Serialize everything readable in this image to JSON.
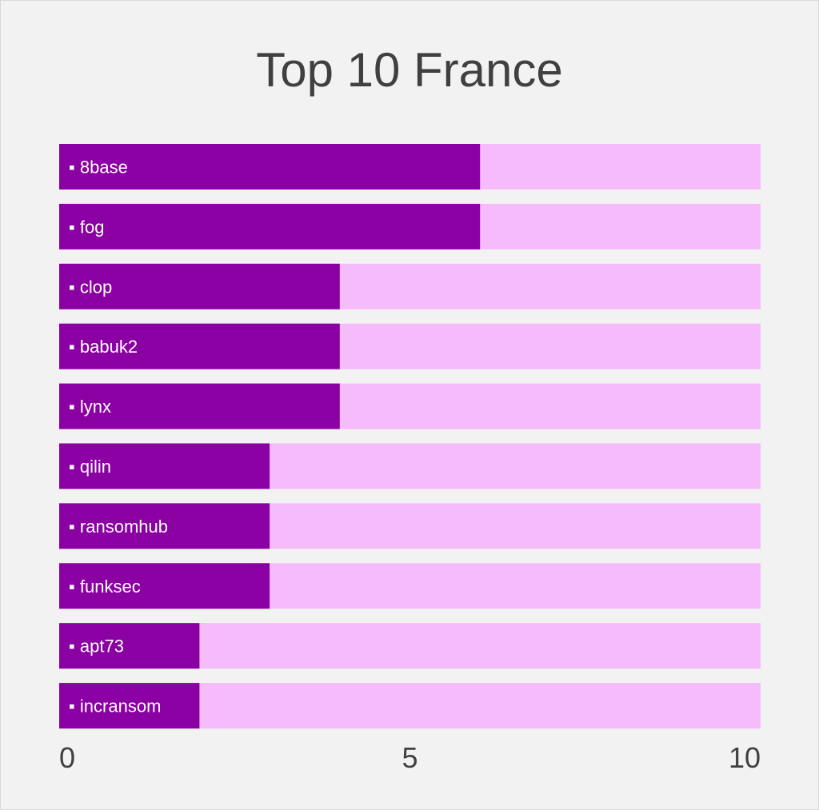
{
  "chart_data": {
    "type": "bar",
    "orientation": "horizontal",
    "title": "Top 10 France",
    "categories": [
      "8base",
      "fog",
      "clop",
      "babuk2",
      "lynx",
      "qilin",
      "ransomhub",
      "funksec",
      "apt73",
      "incransom"
    ],
    "values": [
      6,
      6,
      4,
      4,
      4,
      3,
      3,
      3,
      2,
      2
    ],
    "xlim": [
      0,
      10
    ],
    "x_ticks": [
      "0",
      "5",
      "10"
    ],
    "label_prefix": "▪",
    "grid": false,
    "legend": "none",
    "colors": {
      "value_bar": "#8b00a3",
      "track": "#f5bbfb",
      "background": "#f2f2f2",
      "text": "#404040",
      "label": "#ffffff"
    }
  }
}
